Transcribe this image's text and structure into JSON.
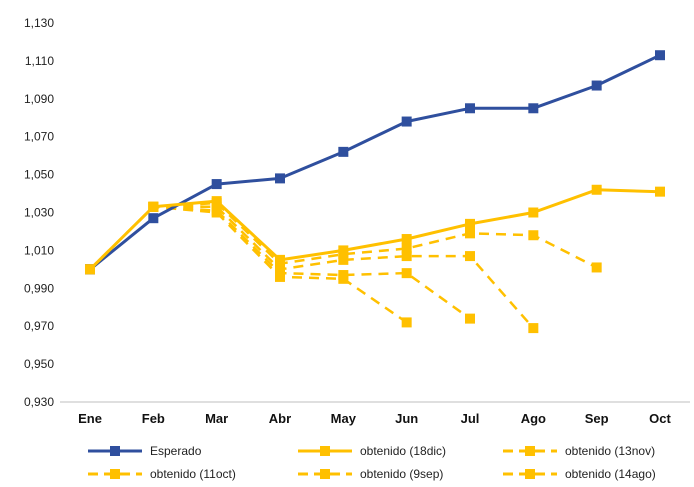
{
  "chart_data": {
    "type": "line",
    "title": "",
    "xlabel": "",
    "ylabel": "",
    "categories": [
      "Ene",
      "Feb",
      "Mar",
      "Abr",
      "May",
      "Jun",
      "Jul",
      "Ago",
      "Sep",
      "Oct"
    ],
    "ylim": [
      0.93,
      1.13
    ],
    "yticks": [
      "0,930",
      "0,950",
      "0,970",
      "0,990",
      "1,010",
      "1,030",
      "1,050",
      "1,070",
      "1,090",
      "1,110",
      "1,130"
    ],
    "grid": false,
    "legend_position": "bottom",
    "series": [
      {
        "name": "Esperado",
        "color": "#2f4f9e",
        "style": "solid",
        "marker": "square",
        "values": [
          1.0,
          1.027,
          1.045,
          1.048,
          1.062,
          1.078,
          1.085,
          1.085,
          1.097,
          1.113
        ]
      },
      {
        "name": "obtenido (18dic)",
        "color": "#ffc000",
        "style": "solid",
        "marker": "square",
        "values": [
          1.0,
          1.033,
          1.036,
          1.005,
          1.01,
          1.016,
          1.024,
          1.03,
          1.042,
          1.041
        ]
      },
      {
        "name": "obtenido (13nov)",
        "color": "#ffc000",
        "style": "dashed",
        "marker": "square",
        "values": [
          1.0,
          1.033,
          1.035,
          1.003,
          1.008,
          1.011,
          1.019,
          1.018,
          1.001,
          null
        ]
      },
      {
        "name": "obtenido (11oct)",
        "color": "#ffc000",
        "style": "dashed",
        "marker": "square",
        "values": [
          1.0,
          1.033,
          1.033,
          1.0,
          1.005,
          1.007,
          1.007,
          0.969,
          null,
          null
        ]
      },
      {
        "name": "obtenido (9sep)",
        "color": "#ffc000",
        "style": "dashed",
        "marker": "square",
        "values": [
          1.0,
          1.033,
          1.031,
          0.998,
          0.997,
          0.998,
          0.974,
          null,
          null,
          null
        ]
      },
      {
        "name": "obtenido (14ago)",
        "color": "#ffc000",
        "style": "dashed",
        "marker": "square",
        "values": [
          1.0,
          1.033,
          1.03,
          0.996,
          0.995,
          0.972,
          null,
          null,
          null,
          null
        ]
      }
    ]
  }
}
